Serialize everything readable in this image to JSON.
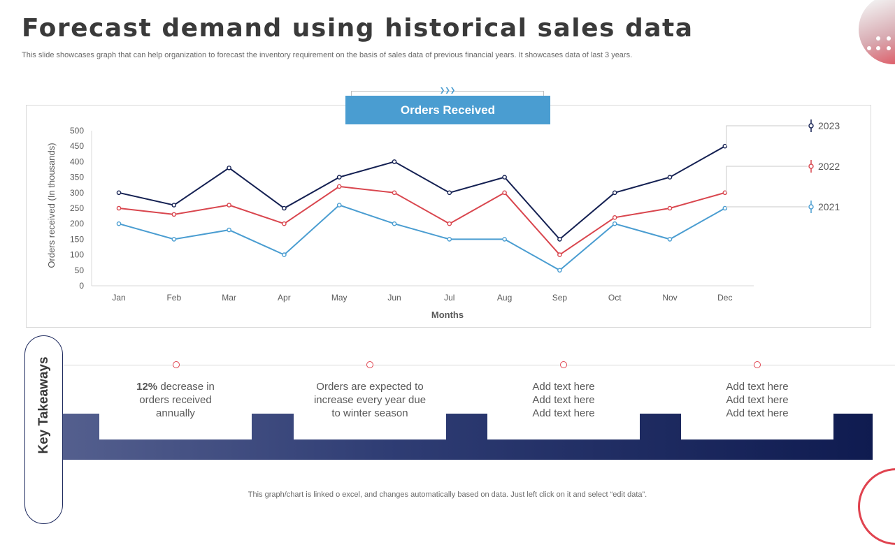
{
  "header": {
    "title": "Forecast demand using historical sales data",
    "subtitle": "This slide showcases graph that can help organization to forecast the inventory requirement on the basis of sales data of previous financial years. It showcases data of last 3 years."
  },
  "chart_data": {
    "type": "line",
    "title": "Orders Received",
    "xlabel": "Months",
    "ylabel": "Orders received (In thousands)",
    "ylim": [
      0,
      500
    ],
    "yticks": [
      "0",
      "50",
      "100",
      "150",
      "200",
      "250",
      "300",
      "350",
      "400",
      "450",
      "500"
    ],
    "categories": [
      "Jan",
      "Feb",
      "Mar",
      "Apr",
      "May",
      "Jun",
      "Jul",
      "Aug",
      "Sep",
      "Oct",
      "Nov",
      "Dec"
    ],
    "grid": false,
    "legend": "right",
    "series": [
      {
        "name": "2023",
        "color": "#142052",
        "values": [
          300,
          260,
          380,
          250,
          350,
          400,
          300,
          350,
          150,
          300,
          350,
          450
        ]
      },
      {
        "name": "2022",
        "color": "#d9464e",
        "values": [
          250,
          230,
          260,
          200,
          320,
          300,
          200,
          300,
          100,
          220,
          250,
          300
        ]
      },
      {
        "name": "2021",
        "color": "#4a9dd1",
        "values": [
          200,
          150,
          180,
          100,
          260,
          200,
          150,
          150,
          50,
          200,
          150,
          250
        ]
      }
    ]
  },
  "takeaways": {
    "label": "Key Takeaways",
    "items": [
      {
        "bold": "12%",
        "text": " decrease in orders received annually"
      },
      {
        "bold": "",
        "text": "Orders are expected to increase every year due to winter season"
      },
      {
        "bold": "",
        "text": "Add text here Add text here Add text here"
      },
      {
        "bold": "",
        "text": "Add text here Add text here Add text here"
      }
    ]
  },
  "footnote": "This graph/chart is linked o excel, and changes automatically based on data. Just left click on it and select “edit data”."
}
